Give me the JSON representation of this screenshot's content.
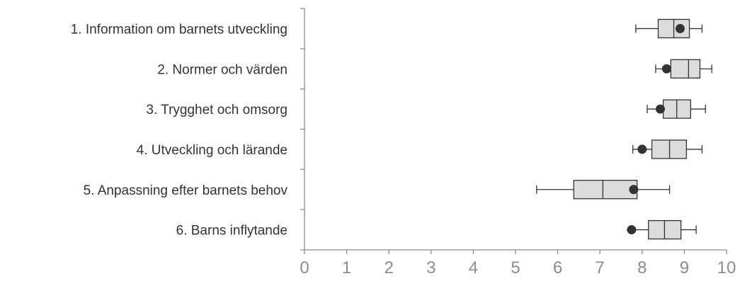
{
  "chart_data": {
    "type": "boxplot",
    "orientation": "horizontal",
    "categories": [
      "1. Information om barnets utveckling",
      "2. Normer och värden",
      "3. Trygghet och omsorg",
      "4. Utveckling och lärande",
      "5. Anpassning efter barnets behov",
      "6. Barns inflytande"
    ],
    "boxes": [
      {
        "whisker_low": 7.85,
        "q1": 8.38,
        "median": 8.75,
        "q3": 9.12,
        "whisker_high": 9.42,
        "point": 8.9
      },
      {
        "whisker_low": 8.32,
        "q1": 8.68,
        "median": 9.1,
        "q3": 9.37,
        "whisker_high": 9.65,
        "point": 8.58
      },
      {
        "whisker_low": 8.12,
        "q1": 8.5,
        "median": 8.82,
        "q3": 9.15,
        "whisker_high": 9.5,
        "point": 8.43
      },
      {
        "whisker_low": 7.78,
        "q1": 8.23,
        "median": 8.65,
        "q3": 9.05,
        "whisker_high": 9.42,
        "point": 8.0
      },
      {
        "whisker_low": 5.5,
        "q1": 6.38,
        "median": 7.07,
        "q3": 7.88,
        "whisker_high": 8.65,
        "point": 7.8
      },
      {
        "whisker_low": 7.78,
        "q1": 8.15,
        "median": 8.53,
        "q3": 8.92,
        "whisker_high": 9.28,
        "point": 7.75
      }
    ],
    "xlim": [
      0,
      10
    ],
    "xticks": [
      0,
      1,
      2,
      3,
      4,
      5,
      6,
      7,
      8,
      9,
      10
    ],
    "grid": false,
    "colors": {
      "box_fill": "#dcdcdc",
      "box_stroke": "#333333",
      "point": "#333333",
      "axis": "#8c8c8c",
      "category_text": "#333333",
      "tick_text": "#8c8c8c"
    }
  }
}
